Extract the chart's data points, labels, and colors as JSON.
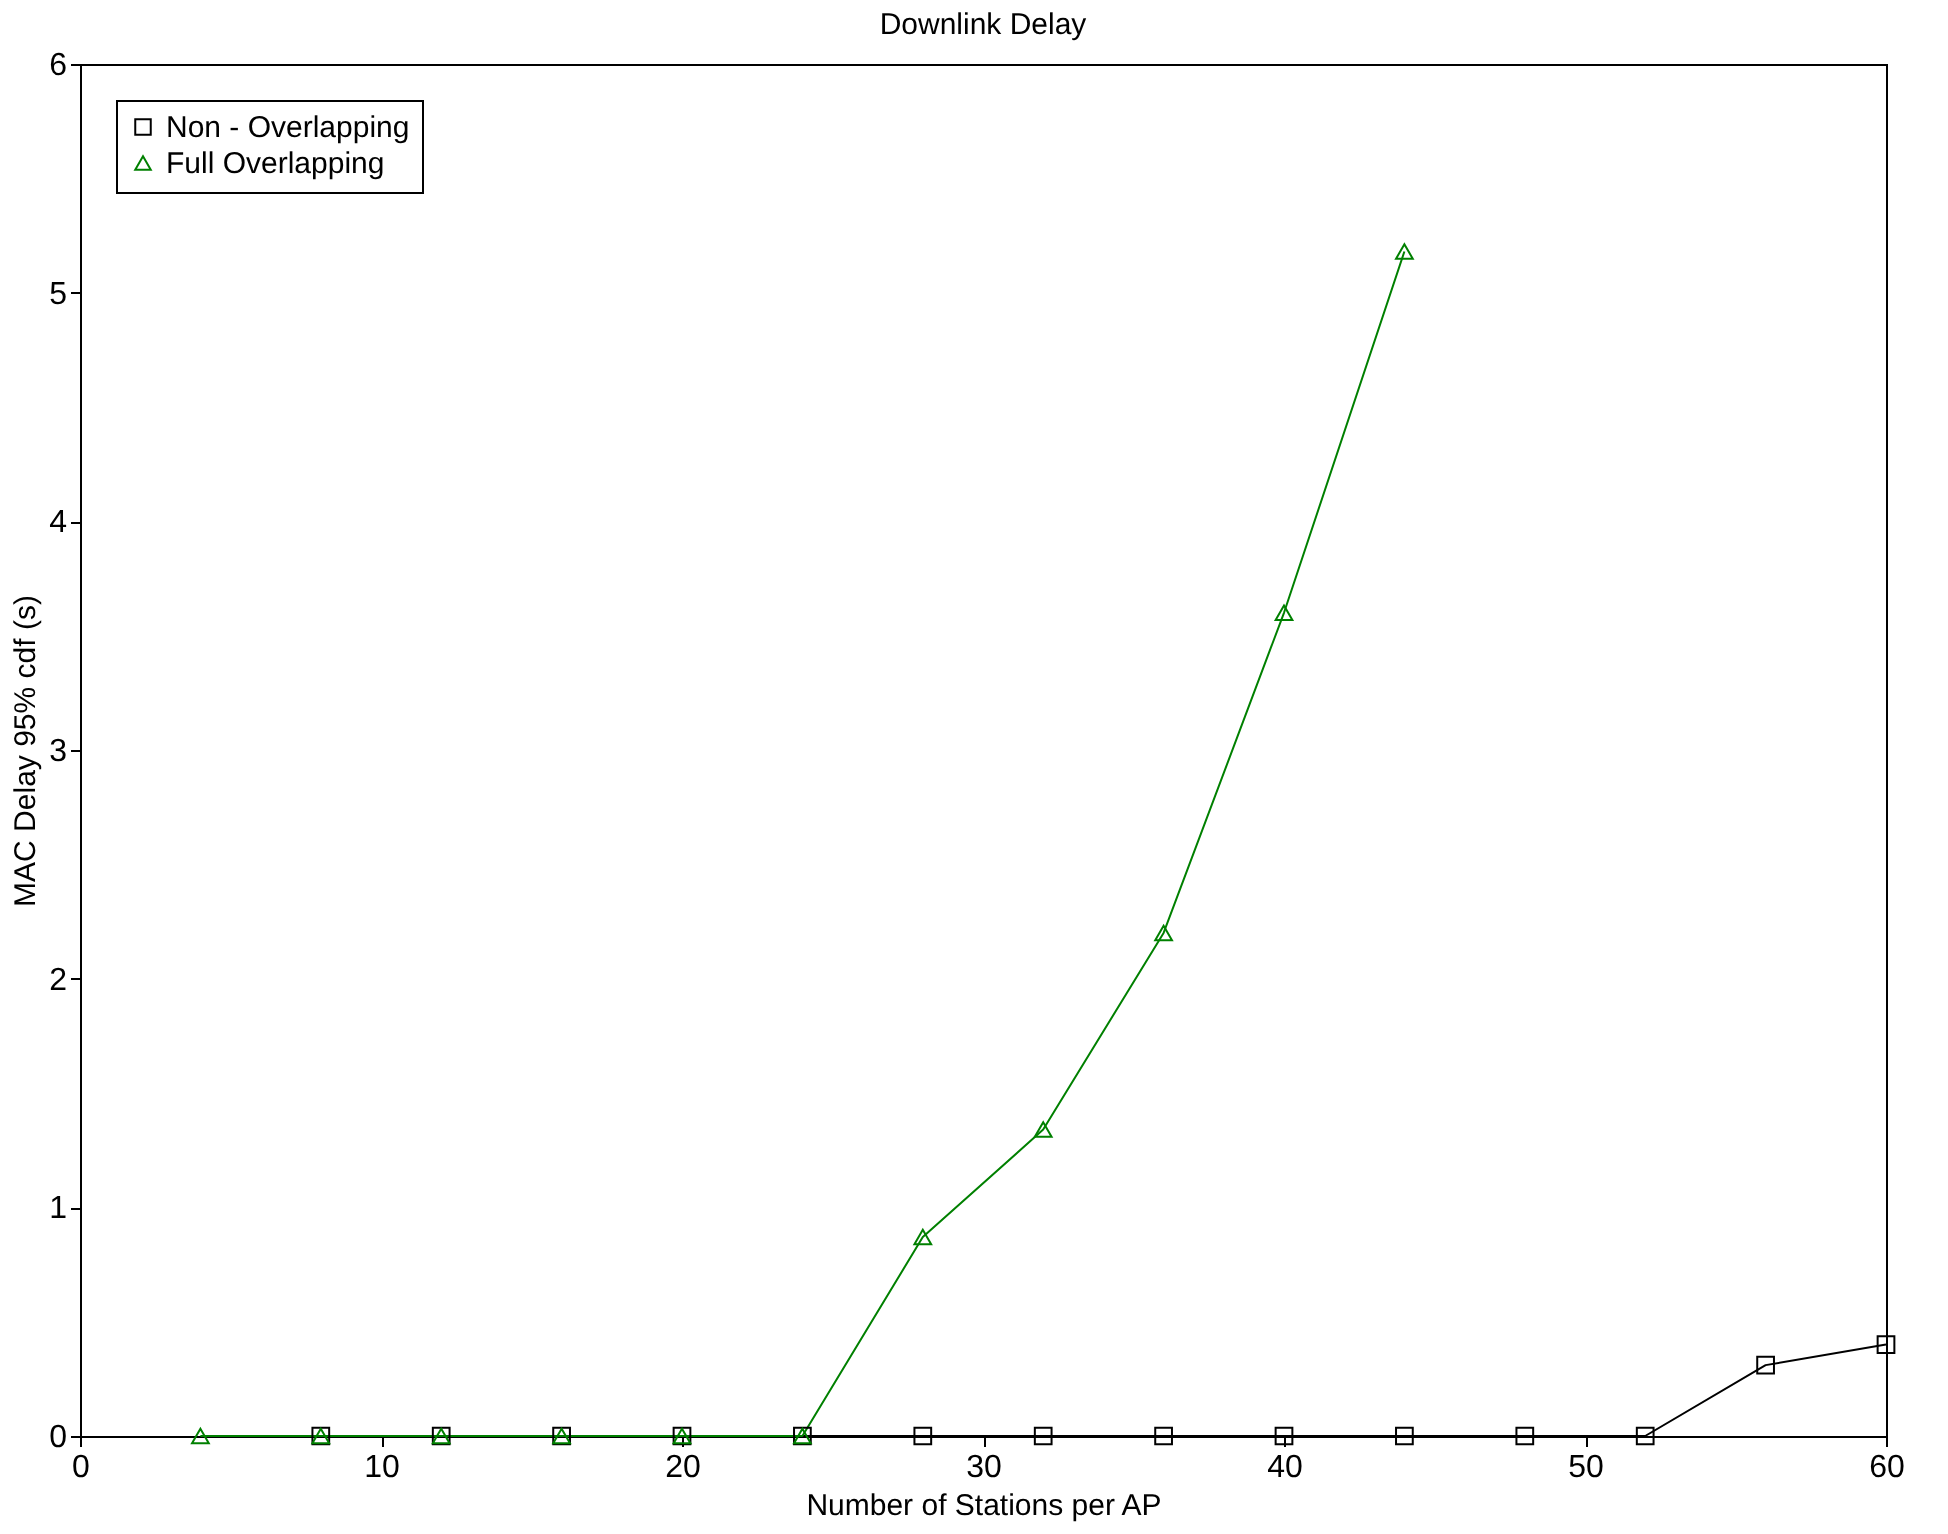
{
  "chart_data": {
    "type": "line",
    "title": "Downlink Delay",
    "xlabel": "Number of Stations per AP",
    "ylabel": "MAC Delay 95% cdf (s)",
    "xlim": [
      0,
      60
    ],
    "xticks": [
      0,
      10,
      20,
      30,
      40,
      50,
      60
    ],
    "ylim": [
      0,
      6
    ],
    "yticks": [
      0,
      1,
      2,
      3,
      4,
      5,
      6
    ],
    "grid": false,
    "legend": "top left",
    "line_style": "solid",
    "series": [
      {
        "name": "Non - Overlapping",
        "color": "#000000",
        "marker": "square",
        "x": [
          8,
          12,
          16,
          20,
          24,
          28,
          32,
          36,
          40,
          44,
          48,
          52,
          56,
          60
        ],
        "values": [
          0,
          0,
          0,
          0,
          0,
          0,
          0,
          0,
          0,
          0,
          0,
          0,
          0.31,
          0.4
        ]
      },
      {
        "name": "Full Overlapping",
        "color": "#008000",
        "marker": "triangle",
        "x": [
          4,
          8,
          12,
          16,
          20,
          24,
          28,
          32,
          36,
          40,
          44
        ],
        "values": [
          0,
          0,
          0,
          0,
          0,
          0,
          0.87,
          1.34,
          2.2,
          3.6,
          5.18
        ]
      }
    ]
  }
}
